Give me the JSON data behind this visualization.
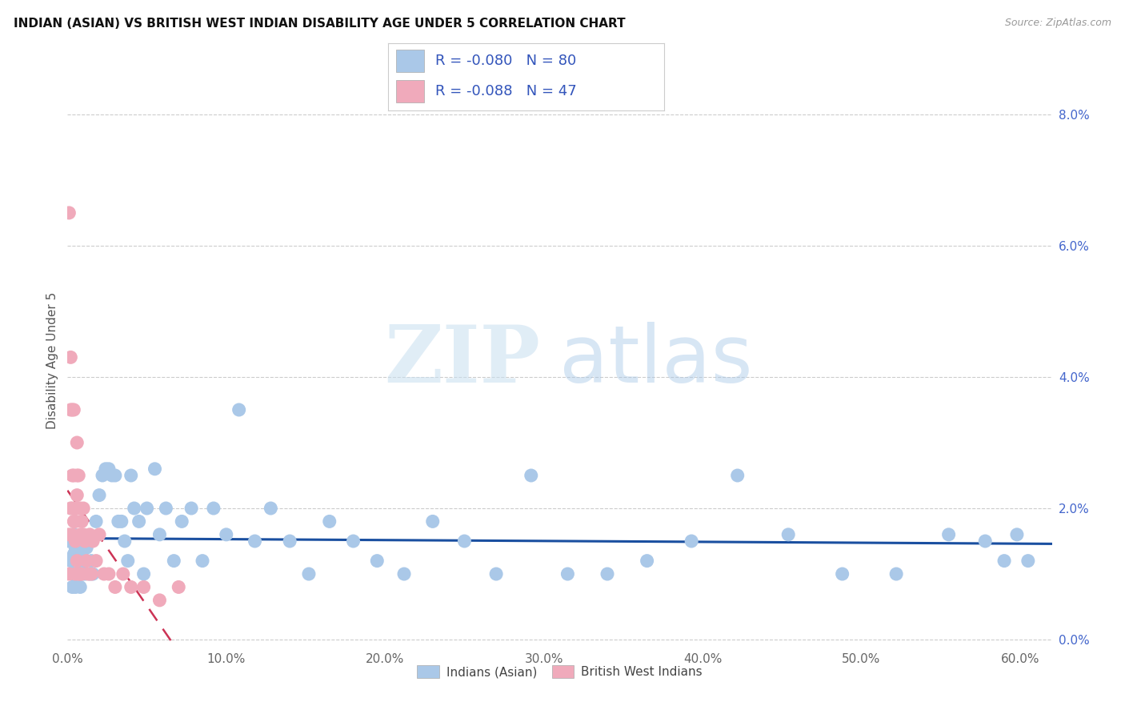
{
  "title": "INDIAN (ASIAN) VS BRITISH WEST INDIAN DISABILITY AGE UNDER 5 CORRELATION CHART",
  "source": "Source: ZipAtlas.com",
  "ylabel": "Disability Age Under 5",
  "xlim": [
    0.0,
    0.62
  ],
  "ylim": [
    -0.001,
    0.086
  ],
  "xticks": [
    0.0,
    0.1,
    0.2,
    0.3,
    0.4,
    0.5,
    0.6
  ],
  "xticklabels": [
    "0.0%",
    "10.0%",
    "20.0%",
    "30.0%",
    "40.0%",
    "50.0%",
    "60.0%"
  ],
  "yticks_right": [
    0.0,
    0.02,
    0.04,
    0.06,
    0.08
  ],
  "yticklabels_right": [
    "0.0%",
    "2.0%",
    "4.0%",
    "6.0%",
    "8.0%"
  ],
  "blue_color": "#aac8e8",
  "pink_color": "#f0aabb",
  "blue_line_color": "#1a4fa0",
  "pink_line_color": "#cc3355",
  "legend_text_color": "#3355bb",
  "grid_color": "#cccccc",
  "R_blue": -0.08,
  "N_blue": 80,
  "R_pink": -0.088,
  "N_pink": 47,
  "watermark_zip": "ZIP",
  "watermark_atlas": "atlas",
  "legend_labels": [
    "Indians (Asian)",
    "British West Indians"
  ],
  "blue_x": [
    0.001,
    0.002,
    0.002,
    0.003,
    0.003,
    0.003,
    0.004,
    0.004,
    0.004,
    0.005,
    0.005,
    0.005,
    0.006,
    0.006,
    0.007,
    0.007,
    0.007,
    0.008,
    0.008,
    0.009,
    0.009,
    0.01,
    0.01,
    0.011,
    0.012,
    0.013,
    0.014,
    0.015,
    0.016,
    0.018,
    0.02,
    0.022,
    0.024,
    0.026,
    0.028,
    0.03,
    0.032,
    0.034,
    0.036,
    0.038,
    0.04,
    0.042,
    0.045,
    0.048,
    0.05,
    0.055,
    0.058,
    0.062,
    0.067,
    0.072,
    0.078,
    0.085,
    0.092,
    0.1,
    0.108,
    0.118,
    0.128,
    0.14,
    0.152,
    0.165,
    0.18,
    0.195,
    0.212,
    0.23,
    0.25,
    0.27,
    0.292,
    0.315,
    0.34,
    0.365,
    0.393,
    0.422,
    0.454,
    0.488,
    0.522,
    0.555,
    0.578,
    0.59,
    0.598,
    0.605
  ],
  "blue_y": [
    0.015,
    0.012,
    0.015,
    0.01,
    0.012,
    0.008,
    0.013,
    0.01,
    0.016,
    0.014,
    0.01,
    0.008,
    0.012,
    0.01,
    0.012,
    0.015,
    0.01,
    0.01,
    0.008,
    0.013,
    0.01,
    0.015,
    0.012,
    0.01,
    0.014,
    0.015,
    0.01,
    0.012,
    0.01,
    0.018,
    0.022,
    0.025,
    0.026,
    0.026,
    0.025,
    0.025,
    0.018,
    0.018,
    0.015,
    0.012,
    0.025,
    0.02,
    0.018,
    0.01,
    0.02,
    0.026,
    0.016,
    0.02,
    0.012,
    0.018,
    0.02,
    0.012,
    0.02,
    0.016,
    0.035,
    0.015,
    0.02,
    0.015,
    0.01,
    0.018,
    0.015,
    0.012,
    0.01,
    0.018,
    0.015,
    0.01,
    0.025,
    0.01,
    0.01,
    0.012,
    0.015,
    0.025,
    0.016,
    0.01,
    0.01,
    0.016,
    0.015,
    0.012,
    0.016,
    0.012
  ],
  "pink_x": [
    0.001,
    0.001,
    0.001,
    0.002,
    0.002,
    0.002,
    0.003,
    0.003,
    0.003,
    0.003,
    0.004,
    0.004,
    0.004,
    0.005,
    0.005,
    0.005,
    0.005,
    0.006,
    0.006,
    0.006,
    0.006,
    0.007,
    0.007,
    0.007,
    0.008,
    0.008,
    0.008,
    0.009,
    0.009,
    0.01,
    0.01,
    0.011,
    0.012,
    0.013,
    0.014,
    0.015,
    0.016,
    0.018,
    0.02,
    0.023,
    0.026,
    0.03,
    0.035,
    0.04,
    0.048,
    0.058,
    0.07
  ],
  "pink_y": [
    0.065,
    0.01,
    0.016,
    0.043,
    0.035,
    0.02,
    0.035,
    0.025,
    0.02,
    0.016,
    0.035,
    0.025,
    0.018,
    0.02,
    0.018,
    0.015,
    0.01,
    0.03,
    0.025,
    0.022,
    0.012,
    0.025,
    0.02,
    0.01,
    0.02,
    0.016,
    0.01,
    0.018,
    0.01,
    0.02,
    0.016,
    0.015,
    0.012,
    0.01,
    0.016,
    0.01,
    0.015,
    0.012,
    0.016,
    0.01,
    0.01,
    0.008,
    0.01,
    0.008,
    0.008,
    0.006,
    0.008
  ],
  "pink_line_x_start": 0.0,
  "pink_line_x_end": 0.62,
  "blue_line_x_start": 0.0,
  "blue_line_x_end": 0.62
}
